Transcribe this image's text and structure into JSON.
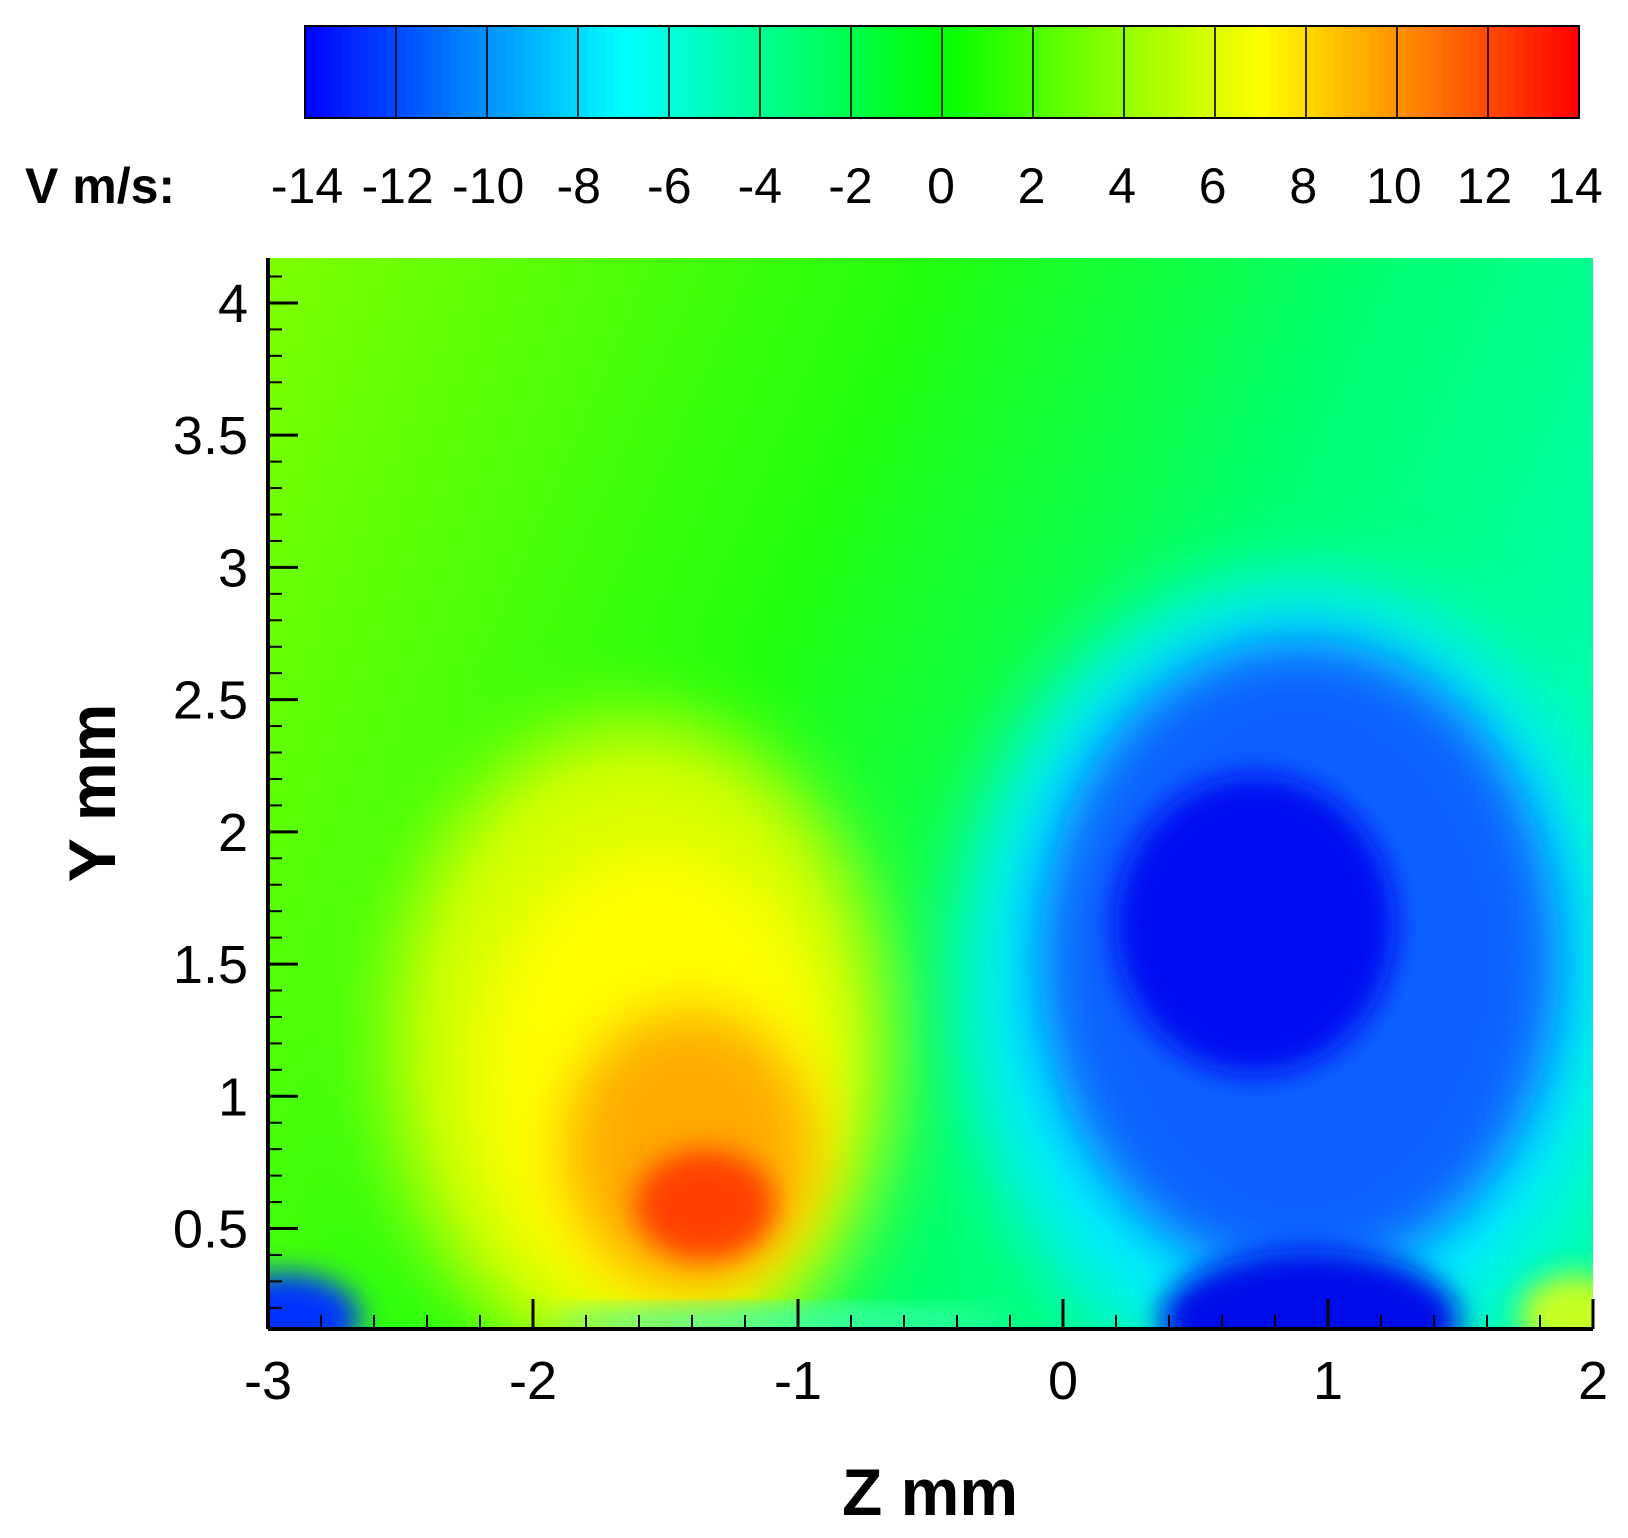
{
  "chart_data": {
    "type": "heatmap",
    "title": "",
    "xlabel": "Z mm",
    "ylabel": "Y mm",
    "xlim": [
      -3,
      2
    ],
    "ylim": [
      0.12,
      4.17
    ],
    "x_ticks": [
      -3,
      -2,
      -1,
      0,
      1,
      2
    ],
    "x_tick_labels": [
      "-3",
      "-2",
      "-1",
      "0",
      "1",
      "2"
    ],
    "y_ticks": [
      0.5,
      1,
      1.5,
      2,
      2.5,
      3,
      3.5,
      4
    ],
    "y_tick_labels": [
      "0.5",
      "1",
      "1.5",
      "2",
      "2.5",
      "3",
      "3.5",
      "4"
    ],
    "grid": false,
    "colorbar": {
      "label": "V m/s:",
      "placement": "top",
      "levels": [
        -14,
        -12,
        -10,
        -8,
        -6,
        -4,
        -2,
        0,
        2,
        4,
        6,
        8,
        10,
        12,
        14
      ],
      "tick_labels": [
        "-14",
        "-12",
        "-10",
        "-8",
        "-6",
        "-4",
        "-2",
        "0",
        "2",
        "4",
        "6",
        "8",
        "10",
        "12",
        "14"
      ],
      "range": [
        -14,
        14
      ],
      "colormap": [
        "#0000ff",
        "#00ffff",
        "#00ff00",
        "#ffff00",
        "#ff0000"
      ]
    },
    "features": [
      {
        "kind": "maximum",
        "z": -1.35,
        "y": 0.55,
        "value": 12
      },
      {
        "kind": "minimum",
        "z": 0.75,
        "y": 1.6,
        "value": -14
      },
      {
        "kind": "minimum",
        "z": 0.9,
        "y": 0.2,
        "value": -14
      },
      {
        "kind": "minimum",
        "z": -2.95,
        "y": 0.2,
        "value": -11
      }
    ]
  }
}
